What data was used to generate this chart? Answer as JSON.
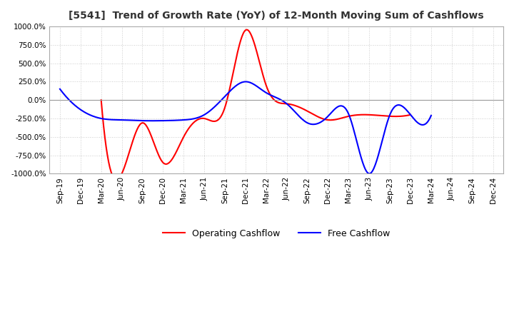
{
  "title": "[5541]  Trend of Growth Rate (YoY) of 12-Month Moving Sum of Cashflows",
  "ylim": [
    -1000,
    1000
  ],
  "yticks": [
    -1000,
    -750,
    -500,
    -250,
    0,
    250,
    500,
    750,
    1000
  ],
  "background_color": "#ffffff",
  "grid_color": "#cccccc",
  "grid_style": "dotted",
  "legend_labels": [
    "Operating Cashflow",
    "Free Cashflow"
  ],
  "legend_colors": [
    "#ff0000",
    "#0000ff"
  ],
  "x_labels": [
    "Sep-19",
    "Dec-19",
    "Mar-20",
    "Jun-20",
    "Sep-20",
    "Dec-20",
    "Mar-21",
    "Jun-21",
    "Sep-21",
    "Dec-21",
    "Mar-22",
    "Jun-22",
    "Sep-22",
    "Dec-22",
    "Mar-23",
    "Jun-23",
    "Sep-23",
    "Dec-23",
    "Mar-24",
    "Jun-24",
    "Sep-24",
    "Dec-24"
  ],
  "operating_cashflow": [
    null,
    null,
    0,
    -1000,
    -310,
    -850,
    -500,
    -250,
    -100,
    950,
    200,
    -50,
    -150,
    -270,
    -220,
    -200,
    -220,
    -200,
    null,
    null,
    null,
    null
  ],
  "free_cashflow": [
    150,
    -130,
    -250,
    -270,
    -280,
    -280,
    -270,
    -200,
    50,
    250,
    100,
    -50,
    -310,
    -220,
    -190,
    -1000,
    -200,
    -200,
    -210,
    null,
    null,
    null
  ]
}
